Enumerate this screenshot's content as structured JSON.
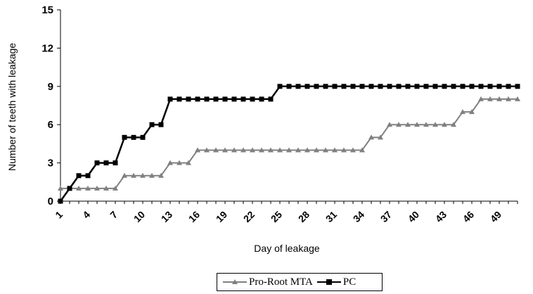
{
  "chart_data": {
    "type": "line",
    "xlabel": "Day of  leakage",
    "ylabel": "Number of teeth with leakage",
    "ylim": [
      0,
      15
    ],
    "yticks": [
      0,
      3,
      6,
      9,
      12,
      15
    ],
    "xticks": [
      1,
      4,
      7,
      10,
      13,
      16,
      19,
      22,
      25,
      28,
      31,
      34,
      37,
      40,
      43,
      46,
      49
    ],
    "xlim": [
      1,
      51
    ],
    "legend_position": "bottom",
    "series": [
      {
        "name": "Pro-Root MTA",
        "color": "#808080",
        "marker": "triangle",
        "x": [
          1,
          2,
          3,
          4,
          5,
          6,
          7,
          8,
          9,
          10,
          11,
          12,
          13,
          14,
          15,
          16,
          17,
          18,
          19,
          20,
          21,
          22,
          23,
          24,
          25,
          26,
          27,
          28,
          29,
          30,
          31,
          32,
          33,
          34,
          35,
          36,
          37,
          38,
          39,
          40,
          41,
          42,
          43,
          44,
          45,
          46,
          47,
          48,
          49,
          50,
          51
        ],
        "values": [
          1,
          1,
          1,
          1,
          1,
          1,
          1,
          2,
          2,
          2,
          2,
          2,
          3,
          3,
          3,
          4,
          4,
          4,
          4,
          4,
          4,
          4,
          4,
          4,
          4,
          4,
          4,
          4,
          4,
          4,
          4,
          4,
          4,
          4,
          5,
          5,
          6,
          6,
          6,
          6,
          6,
          6,
          6,
          6,
          7,
          7,
          8,
          8,
          8,
          8,
          8
        ]
      },
      {
        "name": "PC",
        "color": "#000000",
        "marker": "square",
        "x": [
          1,
          2,
          3,
          4,
          5,
          6,
          7,
          8,
          9,
          10,
          11,
          12,
          13,
          14,
          15,
          16,
          17,
          18,
          19,
          20,
          21,
          22,
          23,
          24,
          25,
          26,
          27,
          28,
          29,
          30,
          31,
          32,
          33,
          34,
          35,
          36,
          37,
          38,
          39,
          40,
          41,
          42,
          43,
          44,
          45,
          46,
          47,
          48,
          49,
          50,
          51
        ],
        "values": [
          0,
          1,
          2,
          2,
          3,
          3,
          3,
          5,
          5,
          5,
          6,
          6,
          8,
          8,
          8,
          8,
          8,
          8,
          8,
          8,
          8,
          8,
          8,
          8,
          9,
          9,
          9,
          9,
          9,
          9,
          9,
          9,
          9,
          9,
          9,
          9,
          9,
          9,
          9,
          9,
          9,
          9,
          9,
          9,
          9,
          9,
          9,
          9,
          9,
          9,
          9
        ]
      }
    ]
  }
}
